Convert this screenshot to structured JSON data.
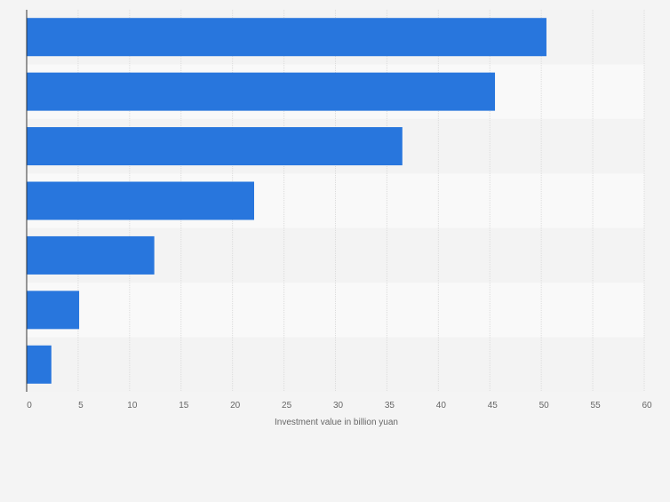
{
  "chart_data": {
    "type": "bar",
    "orientation": "horizontal",
    "title": "",
    "categories": [
      "",
      "",
      "",
      "",
      "",
      "",
      ""
    ],
    "values": [
      50.5,
      45.5,
      36.5,
      22.1,
      12.4,
      5.1,
      2.4
    ],
    "xlabel": "Investment value in billion yuan",
    "ylabel": "",
    "xlim": [
      0,
      60
    ],
    "xticks": [
      "0",
      "5",
      "10",
      "15",
      "20",
      "25",
      "30",
      "35",
      "40",
      "45",
      "50",
      "55",
      "60"
    ],
    "grid": "vertical",
    "colors": {
      "bar": "#2876dd",
      "band_light": "#f9f9f9",
      "band_dark": "#f3f3f3",
      "grid": "#dcdcdc",
      "axis": "#333333",
      "tick_text": "#666666"
    }
  }
}
